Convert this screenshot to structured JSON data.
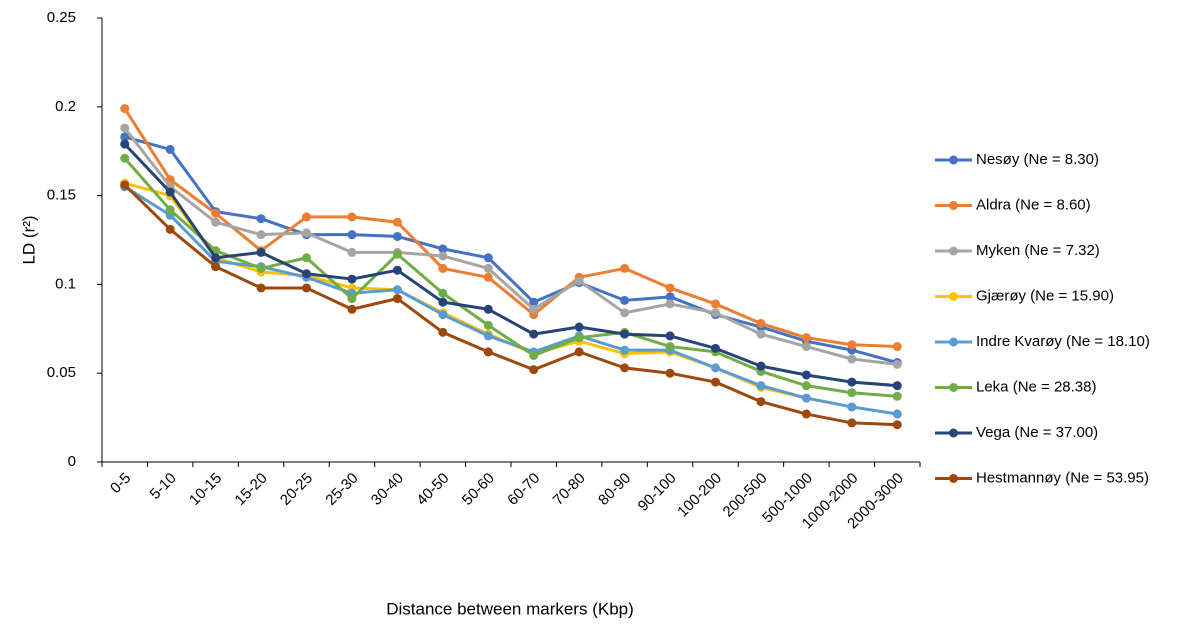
{
  "chart_data": {
    "type": "line",
    "x_label": "Distance between markers (Kbp)",
    "y_label": "LD (r²)",
    "categories": [
      "0-5",
      "5-10",
      "10-15",
      "15-20",
      "20-25",
      "25-30",
      "30-40",
      "40-50",
      "50-60",
      "60-70",
      "70-80",
      "80-90",
      "90-100",
      "100-200",
      "200-500",
      "500-1000",
      "1000-2000",
      "2000-3000"
    ],
    "ylim": [
      0,
      0.25
    ],
    "yticks": [
      0,
      0.05,
      0.1,
      0.15,
      0.2,
      0.25
    ],
    "grid": false,
    "legend": "right",
    "series": [
      {
        "name": "Nesøy (Ne = 8.30)",
        "color": "#4472c4",
        "values": [
          0.183,
          0.176,
          0.141,
          0.137,
          0.128,
          0.128,
          0.127,
          0.12,
          0.115,
          0.09,
          0.101,
          0.091,
          0.093,
          0.083,
          0.076,
          0.068,
          0.063,
          0.056
        ]
      },
      {
        "name": "Aldra (Ne = 8.60)",
        "color": "#ed7d31",
        "values": [
          0.199,
          0.159,
          0.14,
          0.119,
          0.138,
          0.138,
          0.135,
          0.109,
          0.104,
          0.083,
          0.104,
          0.109,
          0.098,
          0.089,
          0.078,
          0.07,
          0.066,
          0.065
        ]
      },
      {
        "name": "Myken (Ne = 7.32)",
        "color": "#a5a5a5",
        "values": [
          0.188,
          0.155,
          0.135,
          0.128,
          0.129,
          0.118,
          0.118,
          0.116,
          0.109,
          0.086,
          0.102,
          0.084,
          0.089,
          0.084,
          0.072,
          0.065,
          0.058,
          0.055
        ]
      },
      {
        "name": "Gjærøy (Ne = 15.90)",
        "color": "#ffc000",
        "values": [
          0.157,
          0.15,
          0.115,
          0.107,
          0.105,
          0.098,
          0.097,
          0.084,
          0.072,
          0.061,
          0.068,
          0.061,
          0.062,
          0.053,
          0.042,
          0.036,
          0.031,
          0.027
        ]
      },
      {
        "name": "Indre Kvarøy (Ne = 18.10)",
        "color": "#5b9bd5",
        "values": [
          0.155,
          0.139,
          0.113,
          0.11,
          0.104,
          0.095,
          0.097,
          0.083,
          0.071,
          0.062,
          0.071,
          0.063,
          0.063,
          0.053,
          0.043,
          0.036,
          0.031,
          0.027
        ]
      },
      {
        "name": "Leka (Ne = 28.38)",
        "color": "#70ad47",
        "values": [
          0.171,
          0.142,
          0.119,
          0.109,
          0.115,
          0.092,
          0.117,
          0.095,
          0.077,
          0.06,
          0.07,
          0.073,
          0.065,
          0.062,
          0.051,
          0.043,
          0.039,
          0.037
        ]
      },
      {
        "name": "Vega (Ne = 37.00)",
        "color": "#264478",
        "values": [
          0.179,
          0.152,
          0.115,
          0.118,
          0.106,
          0.103,
          0.108,
          0.09,
          0.086,
          0.072,
          0.076,
          0.072,
          0.071,
          0.064,
          0.054,
          0.049,
          0.045,
          0.043
        ]
      },
      {
        "name": "Hestmannøy (Ne = 53.95)",
        "color": "#9e480e",
        "values": [
          0.156,
          0.131,
          0.11,
          0.098,
          0.098,
          0.086,
          0.092,
          0.073,
          0.062,
          0.052,
          0.062,
          0.053,
          0.05,
          0.045,
          0.034,
          0.027,
          0.022,
          0.021
        ]
      }
    ]
  }
}
